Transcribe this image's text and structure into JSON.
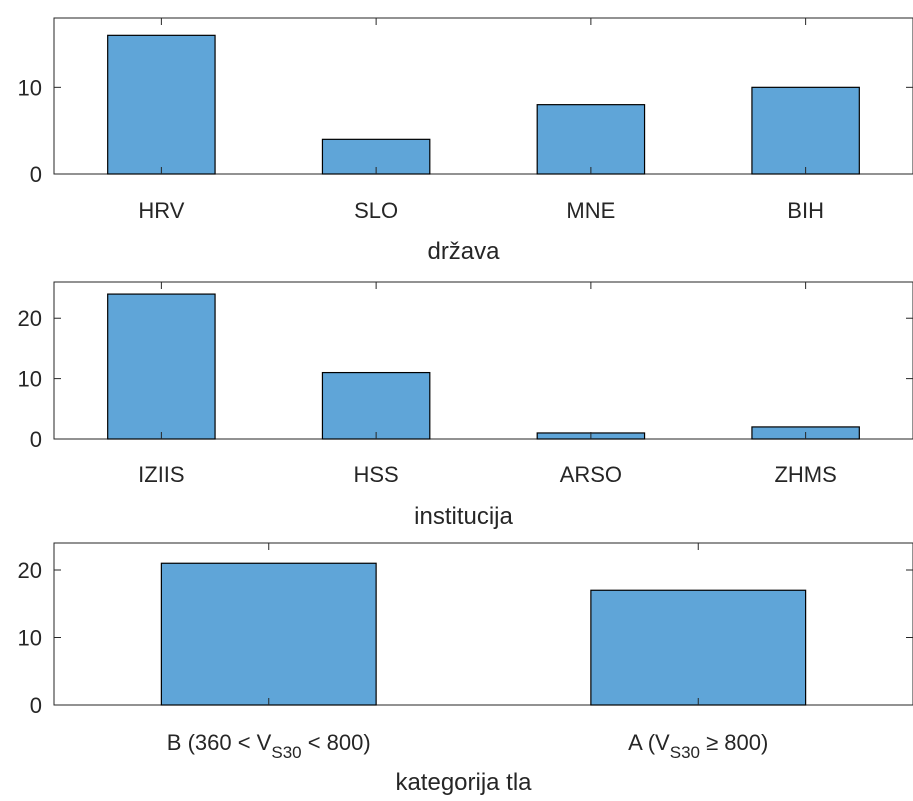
{
  "chart_data": [
    {
      "type": "bar",
      "categories": [
        "HRV",
        "SLO",
        "MNE",
        "BIH"
      ],
      "values": [
        16,
        4,
        8,
        10
      ],
      "xlabel": "država",
      "ylabel": "",
      "ylim": [
        0,
        18
      ],
      "yticks": [
        0,
        10
      ],
      "grid": false,
      "bar_color": "#5fa5d8",
      "edge_color": "#000000"
    },
    {
      "type": "bar",
      "categories": [
        "IZIIS",
        "HSS",
        "ARSO",
        "ZHMS"
      ],
      "values": [
        24,
        11,
        1,
        2
      ],
      "xlabel": "institucija",
      "ylabel": "",
      "ylim": [
        0,
        26
      ],
      "yticks": [
        0,
        10,
        20
      ],
      "grid": false,
      "bar_color": "#5fa5d8",
      "edge_color": "#000000"
    },
    {
      "type": "bar",
      "categories": [
        {
          "pre": "B (360 < V",
          "sub": "S30",
          "post": " < 800)"
        },
        {
          "pre": "A (V",
          "sub": "S30",
          "post": " ≥ 800)"
        }
      ],
      "values": [
        21,
        17
      ],
      "xlabel": "kategorija tla",
      "ylabel": "",
      "ylim": [
        0,
        24
      ],
      "yticks": [
        0,
        10,
        20
      ],
      "grid": false,
      "bar_color": "#5fa5d8",
      "edge_color": "#000000"
    }
  ]
}
